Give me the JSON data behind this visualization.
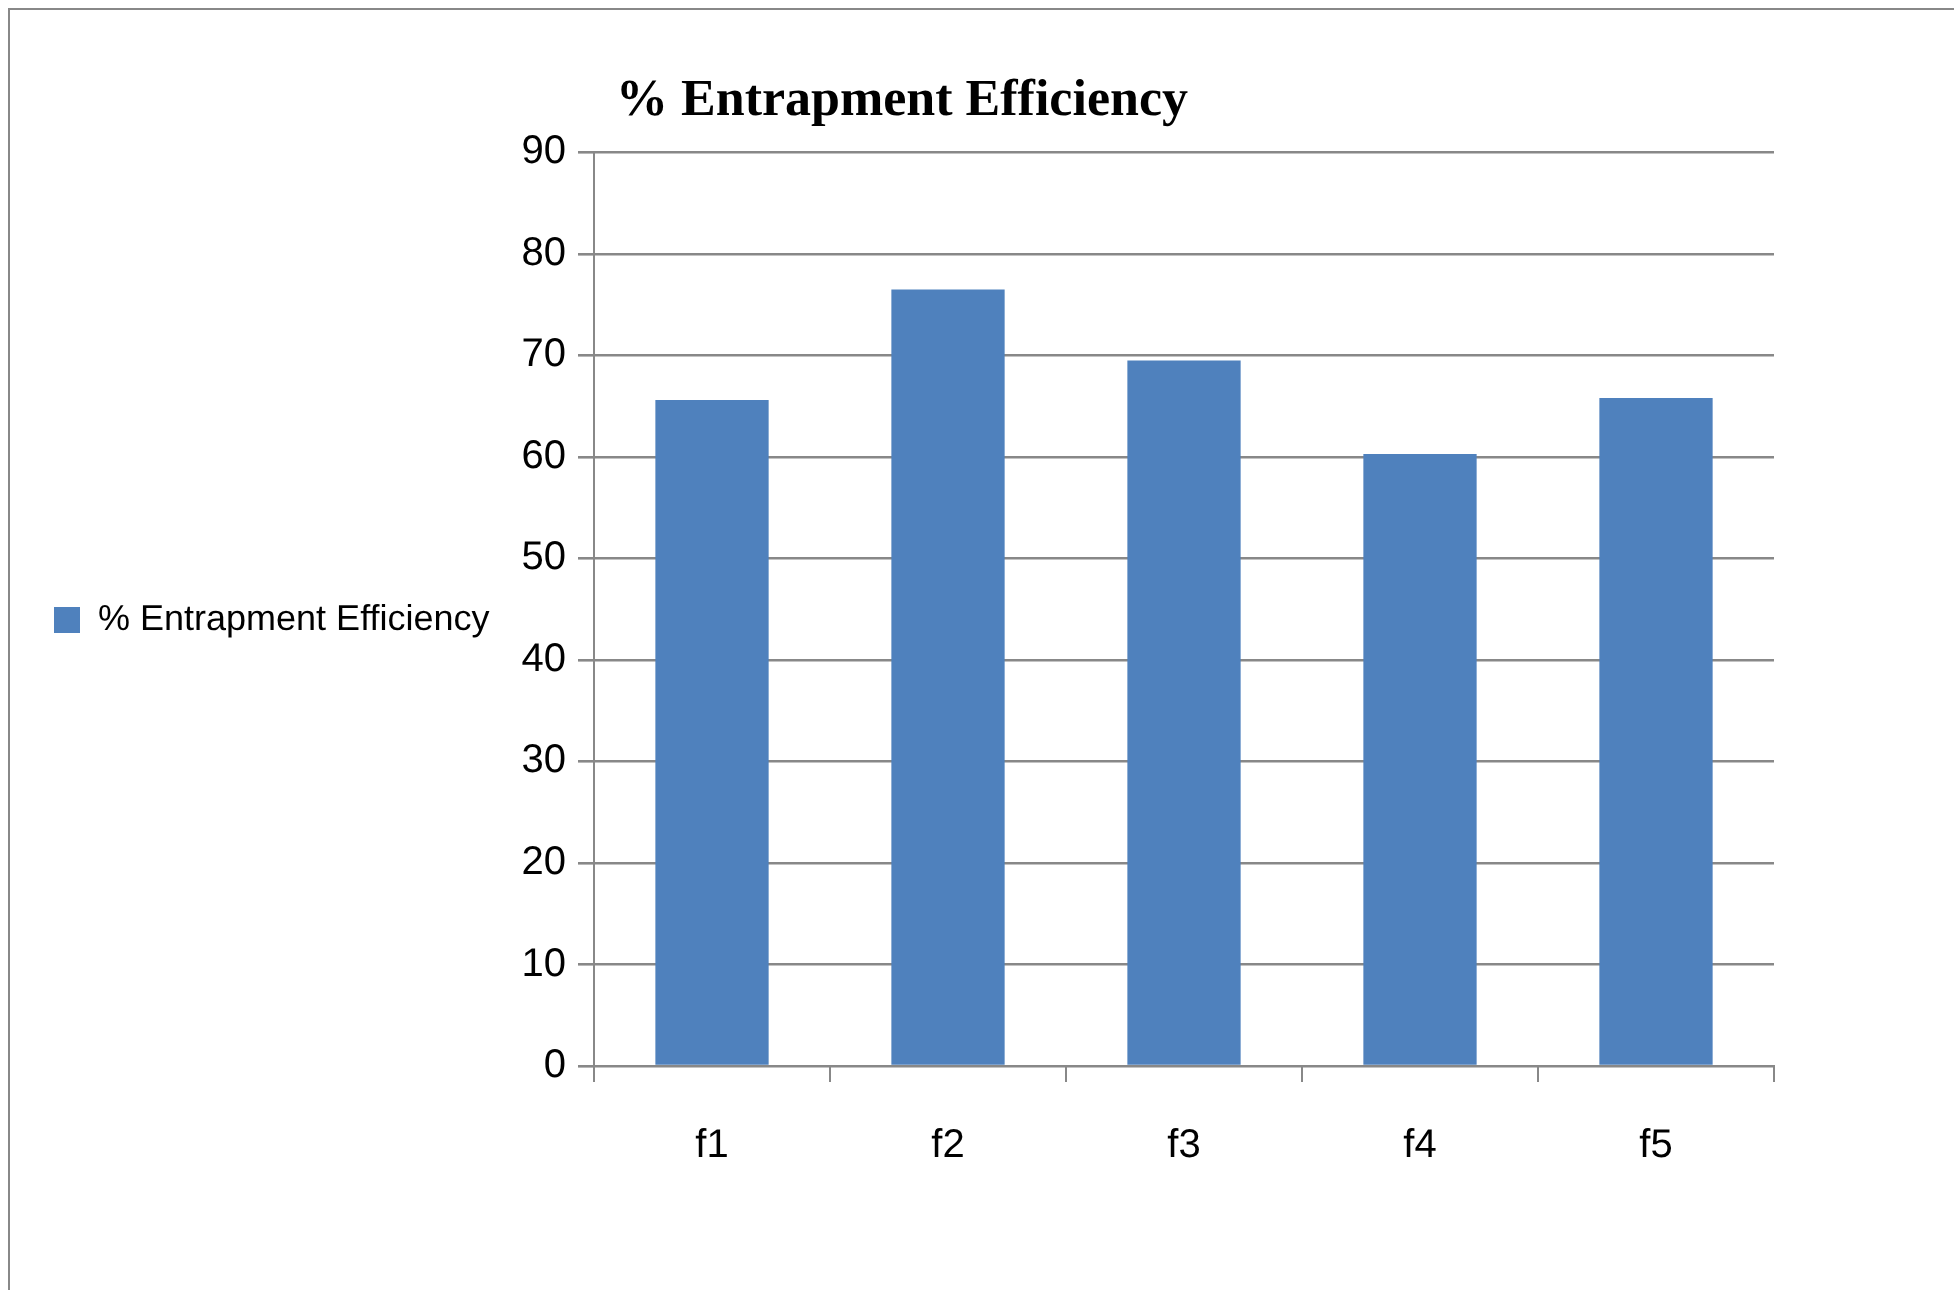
{
  "chart_data": {
    "type": "bar",
    "title": "% Entrapment Efficiency",
    "categories": [
      "f1",
      "f2",
      "f3",
      "f4",
      "f5"
    ],
    "series": [
      {
        "name": "% Entrapment Efficiency",
        "color": "#4f81bd",
        "values": [
          65.6,
          76.5,
          69.5,
          60.3,
          65.8
        ]
      }
    ],
    "ylim": [
      0,
      90
    ],
    "yticks": [
      0,
      10,
      20,
      30,
      40,
      50,
      60,
      70,
      80,
      90
    ],
    "grid": "y",
    "legend": "left"
  }
}
